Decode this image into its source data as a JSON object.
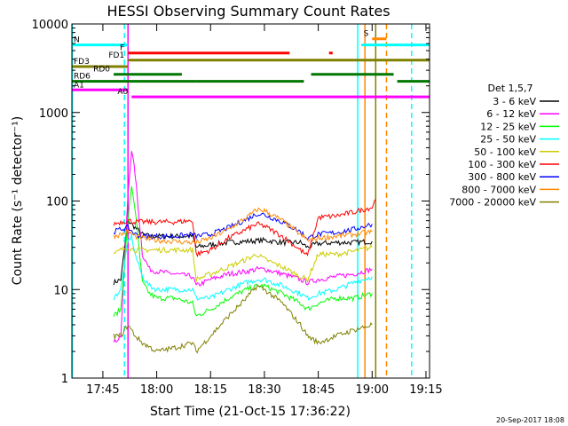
{
  "chart_data": {
    "type": "line",
    "title": "HESSI Observing Summary Count Rates",
    "xlabel": "Start Time (21-Oct-15 17:36:22)",
    "ylabel": "Count Rate (s⁻¹ detector⁻¹)",
    "xlim": [
      "17:36:22",
      "19:16"
    ],
    "ylim": [
      1,
      10000
    ],
    "yscale": "log",
    "x_ticks": [
      "17:45",
      "18:00",
      "18:15",
      "18:30",
      "18:45",
      "19:00",
      "19:15"
    ],
    "y_ticks": [
      "1",
      "10",
      "100",
      "1000",
      "10000"
    ],
    "footer": "20-Sep-2017 18:08",
    "legend": {
      "title": "Det 1,5,7",
      "placement": "right",
      "entries": [
        {
          "label": "3 - 6 keV",
          "color": "#000000"
        },
        {
          "label": "6 - 12 keV",
          "color": "#ff00ff"
        },
        {
          "label": "12 - 25 keV",
          "color": "#00ff00"
        },
        {
          "label": "25 - 50 keV",
          "color": "#00ffff"
        },
        {
          "label": "50 - 100 keV",
          "color": "#cccc00"
        },
        {
          "label": "100 - 300 keV",
          "color": "#ff0000"
        },
        {
          "label": "300 - 800 keV",
          "color": "#0000ff"
        },
        {
          "label": "800 - 7000 keV",
          "color": "#ff8800"
        },
        {
          "label": "7000 - 20000 keV",
          "color": "#808000"
        }
      ]
    },
    "series": [
      {
        "name": "3 - 6 keV",
        "color": "#000000",
        "points": [
          [
            "17:48",
            12
          ],
          [
            "17:50",
            13
          ],
          [
            "17:52",
            60
          ],
          [
            "17:54",
            50
          ],
          [
            "17:56",
            42
          ],
          [
            "17:58",
            40
          ],
          [
            "18:00",
            40
          ],
          [
            "18:05",
            40
          ],
          [
            "18:10",
            40
          ],
          [
            "18:11",
            30
          ],
          [
            "18:15",
            32
          ],
          [
            "18:20",
            34
          ],
          [
            "18:25",
            35
          ],
          [
            "18:30",
            36
          ],
          [
            "18:35",
            34
          ],
          [
            "18:40",
            34
          ],
          [
            "18:42",
            30
          ],
          [
            "18:45",
            33
          ],
          [
            "18:50",
            34
          ],
          [
            "18:55",
            34
          ],
          [
            "19:00",
            35
          ]
        ]
      },
      {
        "name": "6 - 12 keV",
        "color": "#ff00ff",
        "points": [
          [
            "17:48",
            2.5
          ],
          [
            "17:50",
            3
          ],
          [
            "17:52",
            120
          ],
          [
            "17:53",
            380
          ],
          [
            "17:54",
            200
          ],
          [
            "17:56",
            25
          ],
          [
            "17:58",
            17
          ],
          [
            "18:00",
            16
          ],
          [
            "18:05",
            15
          ],
          [
            "18:10",
            14
          ],
          [
            "18:11",
            11
          ],
          [
            "18:15",
            13
          ],
          [
            "18:20",
            15
          ],
          [
            "18:25",
            16
          ],
          [
            "18:28",
            17
          ],
          [
            "18:30",
            17
          ],
          [
            "18:35",
            15
          ],
          [
            "18:40",
            13
          ],
          [
            "18:42",
            12
          ],
          [
            "18:45",
            13
          ],
          [
            "18:50",
            14
          ],
          [
            "18:55",
            15
          ],
          [
            "19:00",
            17
          ]
        ]
      },
      {
        "name": "12 - 25 keV",
        "color": "#00ff00",
        "points": [
          [
            "17:48",
            5
          ],
          [
            "17:50",
            6
          ],
          [
            "17:52",
            60
          ],
          [
            "17:53",
            150
          ],
          [
            "17:54",
            80
          ],
          [
            "17:56",
            12
          ],
          [
            "17:58",
            9
          ],
          [
            "18:00",
            8
          ],
          [
            "18:05",
            8
          ],
          [
            "18:10",
            7
          ],
          [
            "18:11",
            5
          ],
          [
            "18:15",
            6
          ],
          [
            "18:20",
            8
          ],
          [
            "18:25",
            10
          ],
          [
            "18:28",
            11
          ],
          [
            "18:30",
            11
          ],
          [
            "18:35",
            9
          ],
          [
            "18:40",
            7
          ],
          [
            "18:42",
            6
          ],
          [
            "18:45",
            7
          ],
          [
            "18:50",
            8
          ],
          [
            "18:55",
            8
          ],
          [
            "19:00",
            9
          ]
        ]
      },
      {
        "name": "25 - 50 keV",
        "color": "#00ffff",
        "points": [
          [
            "17:48",
            8
          ],
          [
            "17:50",
            10
          ],
          [
            "17:52",
            35
          ],
          [
            "17:53",
            40
          ],
          [
            "17:54",
            25
          ],
          [
            "17:56",
            14
          ],
          [
            "17:58",
            11
          ],
          [
            "18:00",
            10
          ],
          [
            "18:05",
            10
          ],
          [
            "18:10",
            10
          ],
          [
            "18:11",
            8
          ],
          [
            "18:15",
            8
          ],
          [
            "18:20",
            10
          ],
          [
            "18:25",
            12
          ],
          [
            "18:28",
            13
          ],
          [
            "18:30",
            13
          ],
          [
            "18:35",
            11
          ],
          [
            "18:40",
            9
          ],
          [
            "18:42",
            8
          ],
          [
            "18:45",
            9
          ],
          [
            "18:50",
            10
          ],
          [
            "18:55",
            12
          ],
          [
            "19:00",
            14
          ]
        ]
      },
      {
        "name": "50 - 100 keV",
        "color": "#cccc00",
        "points": [
          [
            "17:48",
            25
          ],
          [
            "17:50",
            28
          ],
          [
            "17:52",
            30
          ],
          [
            "17:54",
            28
          ],
          [
            "17:56",
            28
          ],
          [
            "18:00",
            28
          ],
          [
            "18:05",
            28
          ],
          [
            "18:10",
            28
          ],
          [
            "18:11",
            13
          ],
          [
            "18:15",
            15
          ],
          [
            "18:20",
            18
          ],
          [
            "18:25",
            22
          ],
          [
            "18:28",
            25
          ],
          [
            "18:30",
            22
          ],
          [
            "18:35",
            18
          ],
          [
            "18:40",
            14
          ],
          [
            "18:42",
            13
          ],
          [
            "18:45",
            25
          ],
          [
            "18:50",
            25
          ],
          [
            "18:55",
            27
          ],
          [
            "19:00",
            30
          ]
        ]
      },
      {
        "name": "100 - 300 keV",
        "color": "#ff0000",
        "points": [
          [
            "17:48",
            55
          ],
          [
            "17:50",
            58
          ],
          [
            "17:52",
            60
          ],
          [
            "17:54",
            58
          ],
          [
            "17:56",
            58
          ],
          [
            "18:00",
            58
          ],
          [
            "18:05",
            58
          ],
          [
            "18:10",
            60
          ],
          [
            "18:11",
            25
          ],
          [
            "18:15",
            28
          ],
          [
            "18:20",
            38
          ],
          [
            "18:25",
            48
          ],
          [
            "18:28",
            55
          ],
          [
            "18:30",
            52
          ],
          [
            "18:35",
            40
          ],
          [
            "18:40",
            28
          ],
          [
            "18:42",
            24
          ],
          [
            "18:45",
            65
          ],
          [
            "18:50",
            68
          ],
          [
            "18:55",
            75
          ],
          [
            "19:00",
            85
          ],
          [
            "19:01",
            105
          ]
        ]
      },
      {
        "name": "300 - 800 keV",
        "color": "#0000ff",
        "points": [
          [
            "17:48",
            45
          ],
          [
            "17:50",
            48
          ],
          [
            "17:52",
            50
          ],
          [
            "17:54",
            42
          ],
          [
            "17:56",
            40
          ],
          [
            "18:00",
            40
          ],
          [
            "18:05",
            40
          ],
          [
            "18:10",
            42
          ],
          [
            "18:11",
            40
          ],
          [
            "18:15",
            42
          ],
          [
            "18:20",
            50
          ],
          [
            "18:25",
            62
          ],
          [
            "18:28",
            72
          ],
          [
            "18:30",
            70
          ],
          [
            "18:35",
            58
          ],
          [
            "18:40",
            45
          ],
          [
            "18:42",
            38
          ],
          [
            "18:45",
            42
          ],
          [
            "18:50",
            44
          ],
          [
            "18:55",
            48
          ],
          [
            "19:00",
            55
          ]
        ]
      },
      {
        "name": "800 - 7000 keV",
        "color": "#ff8800",
        "points": [
          [
            "17:48",
            40
          ],
          [
            "17:50",
            42
          ],
          [
            "17:52",
            45
          ],
          [
            "17:54",
            40
          ],
          [
            "17:56",
            38
          ],
          [
            "18:00",
            36
          ],
          [
            "18:05",
            35
          ],
          [
            "18:10",
            34
          ],
          [
            "18:11",
            34
          ],
          [
            "18:15",
            38
          ],
          [
            "18:20",
            48
          ],
          [
            "18:25",
            65
          ],
          [
            "18:28",
            80
          ],
          [
            "18:30",
            78
          ],
          [
            "18:35",
            60
          ],
          [
            "18:40",
            42
          ],
          [
            "18:42",
            36
          ],
          [
            "18:45",
            38
          ],
          [
            "18:50",
            40
          ],
          [
            "18:55",
            42
          ],
          [
            "19:00",
            45
          ]
        ]
      },
      {
        "name": "7000 - 20000 keV",
        "color": "#808000",
        "points": [
          [
            "17:48",
            3
          ],
          [
            "17:50",
            3
          ],
          [
            "17:52",
            4
          ],
          [
            "17:54",
            3
          ],
          [
            "17:56",
            2.5
          ],
          [
            "18:00",
            2
          ],
          [
            "18:05",
            2.2
          ],
          [
            "18:10",
            2.5
          ],
          [
            "18:11",
            2
          ],
          [
            "18:15",
            3
          ],
          [
            "18:20",
            5
          ],
          [
            "18:25",
            8
          ],
          [
            "18:28",
            11
          ],
          [
            "18:30",
            10
          ],
          [
            "18:35",
            7
          ],
          [
            "18:40",
            4
          ],
          [
            "18:42",
            3
          ],
          [
            "18:45",
            2.5
          ],
          [
            "18:50",
            3
          ],
          [
            "18:55",
            3.5
          ],
          [
            "19:00",
            4
          ]
        ]
      }
    ],
    "flag_bars": [
      {
        "label": "N",
        "color": "#00ffff",
        "y": 5800,
        "segments": [
          [
            "17:36:22",
            "17:52"
          ],
          [
            "18:57",
            "19:16"
          ]
        ]
      },
      {
        "label": "F",
        "color": "#ff0000",
        "y": 4700,
        "segments": [
          [
            "17:52",
            "18:37"
          ],
          [
            "18:48",
            "18:49"
          ]
        ]
      },
      {
        "label": "S",
        "color": "#ff8800",
        "y": 6800,
        "segments": [
          [
            "19:00",
            "19:04"
          ]
        ]
      },
      {
        "label": "FD1",
        "color": "#808000",
        "y": 3900,
        "segments": [
          [
            "17:52",
            "19:16"
          ]
        ]
      },
      {
        "label": "FD3",
        "color": "#808000",
        "y": 3300,
        "segments": [
          [
            "17:36:22",
            "17:52"
          ]
        ]
      },
      {
        "label": "RD0",
        "color": "#007700",
        "y": 2700,
        "segments": [
          [
            "17:48",
            "18:07"
          ],
          [
            "18:43",
            "19:06"
          ]
        ]
      },
      {
        "label": "RD6",
        "color": "#007700",
        "y": 2250,
        "segments": [
          [
            "17:36:22",
            "18:11"
          ],
          [
            "18:11",
            "18:41"
          ],
          [
            "19:07",
            "19:16"
          ]
        ]
      },
      {
        "label": "A1",
        "color": "#ff00ff",
        "y": 1800,
        "segments": [
          [
            "17:36:22",
            "17:52"
          ]
        ]
      },
      {
        "label": "A0",
        "color": "#ff00ff",
        "y": 1500,
        "segments": [
          [
            "17:53",
            "19:16"
          ]
        ]
      }
    ],
    "vertical_markers": [
      {
        "x": "17:36:30",
        "color": "#00ffff",
        "style": "solid"
      },
      {
        "x": "17:51",
        "color": "#00ffff",
        "style": "dashed"
      },
      {
        "x": "17:52",
        "color": "#ff00ff",
        "style": "solid"
      },
      {
        "x": "18:56",
        "color": "#00ffff",
        "style": "solid"
      },
      {
        "x": "18:58",
        "color": "#ff8800",
        "style": "solid"
      },
      {
        "x": "19:01",
        "color": "#808000",
        "style": "solid"
      },
      {
        "x": "19:04",
        "color": "#ff8800",
        "style": "dashed"
      },
      {
        "x": "19:11",
        "color": "#00ffff",
        "style": "dashed"
      }
    ]
  }
}
